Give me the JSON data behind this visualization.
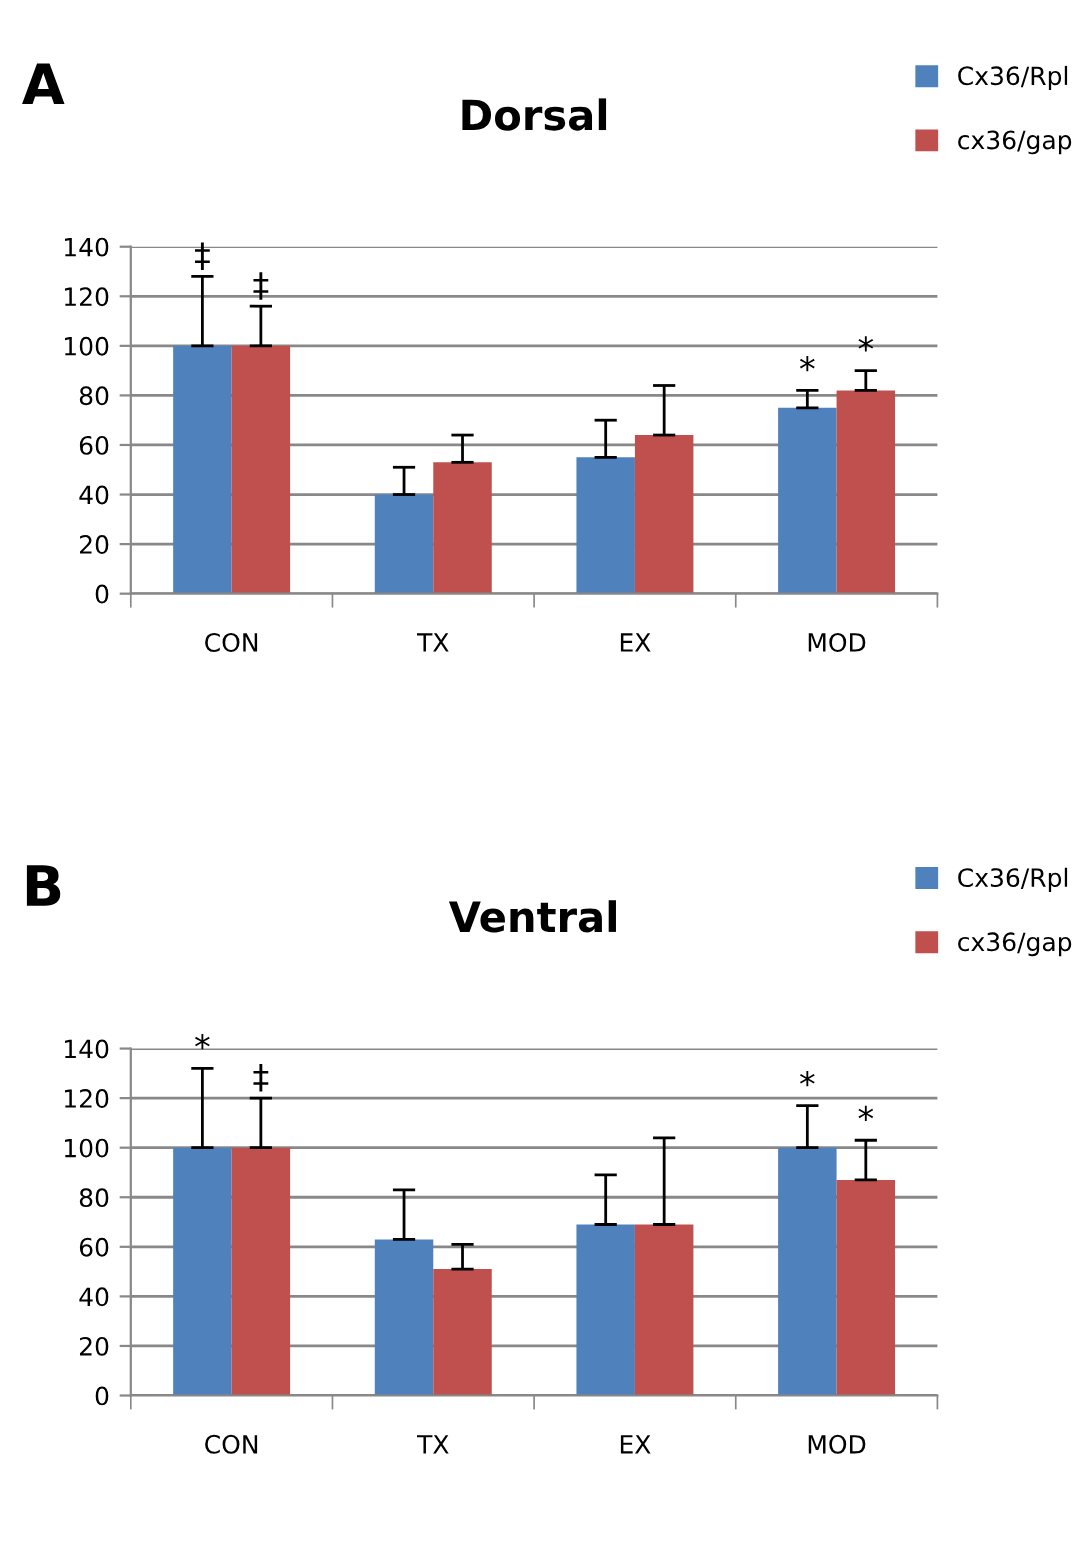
{
  "chart_data": [
    {
      "type": "bar",
      "title": "Dorsal",
      "categories": [
        "CON",
        "TX",
        "EX",
        "MOD"
      ],
      "series": [
        {
          "name": "Cx36/Rpl",
          "color": "#4f81bd",
          "values": [
            100,
            40,
            55,
            75
          ],
          "errors": [
            [
              100,
              128
            ],
            [
              40,
              51
            ],
            [
              55,
              70
            ],
            [
              75,
              82
            ]
          ]
        },
        {
          "name": "cx36/gap",
          "color": "#c0504d",
          "values": [
            100,
            53,
            64,
            82
          ],
          "errors": [
            [
              100,
              116
            ],
            [
              53,
              64
            ],
            [
              64,
              84
            ],
            [
              82,
              90
            ]
          ]
        }
      ],
      "ylim": [
        0,
        140
      ],
      "yticks": [
        0,
        20,
        40,
        60,
        80,
        100,
        120,
        140
      ],
      "grid": "y",
      "legend": "top right",
      "annotations": [
        "A",
        "‡",
        "‡",
        "*",
        "*"
      ]
    },
    {
      "type": "bar",
      "title": "Ventral",
      "categories": [
        "CON",
        "TX",
        "EX",
        "MOD"
      ],
      "series": [
        {
          "name": "Cx36/Rpl",
          "color": "#4f81bd",
          "values": [
            100,
            63,
            69,
            100
          ],
          "errors": [
            [
              100,
              132
            ],
            [
              63,
              83
            ],
            [
              69,
              89
            ],
            [
              100,
              117
            ]
          ]
        },
        {
          "name": "cx36/gap",
          "color": "#c0504d",
          "values": [
            100,
            51,
            69,
            87
          ],
          "errors": [
            [
              100,
              120
            ],
            [
              51,
              61
            ],
            [
              69,
              104
            ],
            [
              87,
              103
            ]
          ]
        }
      ],
      "ylim": [
        0,
        140
      ],
      "yticks": [
        0,
        20,
        40,
        60,
        80,
        100,
        120,
        140
      ],
      "grid": "y",
      "legend": "top right",
      "annotations": [
        "B",
        "*",
        "‡",
        "*",
        "*"
      ]
    }
  ]
}
